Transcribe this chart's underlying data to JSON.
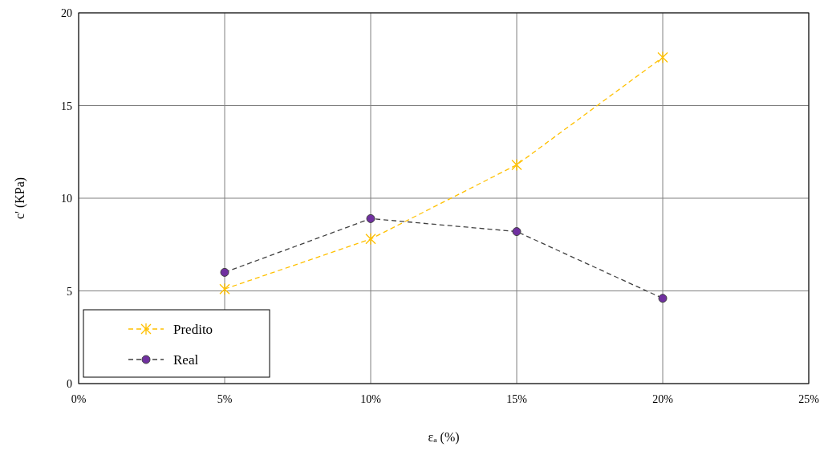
{
  "chart_data": {
    "type": "line",
    "xlabel": "εₐ (%)",
    "ylabel": "c' (KPa)",
    "x": [
      0.05,
      0.1,
      0.15,
      0.2
    ],
    "series": [
      {
        "name": "Predito",
        "color": "#ffc000",
        "values": [
          5.1,
          7.8,
          11.8,
          17.6
        ],
        "marker": "cross"
      },
      {
        "name": "Real",
        "color": "#404040",
        "values": [
          6.0,
          8.9,
          8.2,
          4.6
        ],
        "marker": "circle"
      }
    ],
    "xlim": [
      0,
      0.25
    ],
    "xticks": [
      {
        "value": 0,
        "label": "0%"
      },
      {
        "value": 0.05,
        "label": "5%"
      },
      {
        "value": 0.1,
        "label": "10%"
      },
      {
        "value": 0.15,
        "label": "15%"
      },
      {
        "value": 0.2,
        "label": "20%"
      },
      {
        "value": 0.25,
        "label": "25%"
      }
    ],
    "ylim": [
      0,
      20
    ],
    "yticks": [
      0,
      5,
      10,
      15,
      20
    ],
    "grid": true,
    "legend": "bottom left",
    "line_style": "dashed"
  }
}
